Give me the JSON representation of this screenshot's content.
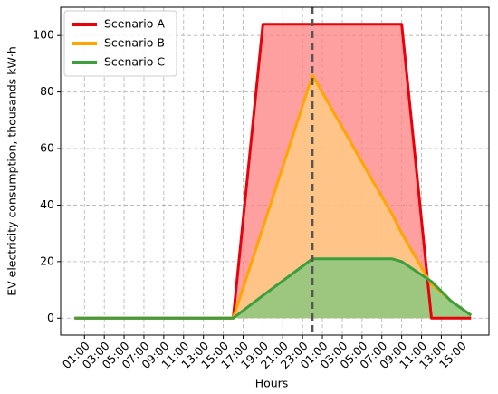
{
  "chart_data": {
    "type": "line",
    "x_label": "Hours",
    "y_label": "EV electricity consumption, thousands kW·h",
    "x": [
      0,
      16,
      19,
      24,
      30,
      32,
      33,
      36,
      38,
      40
    ],
    "series": [
      {
        "name": "Scenario A",
        "color": "#e8000b",
        "fill": "#ff8080",
        "values": [
          0,
          0,
          104,
          104,
          104,
          104,
          104,
          0,
          0,
          0
        ]
      },
      {
        "name": "Scenario B",
        "color": "#ffa500",
        "fill": "#ffd080",
        "values": [
          0,
          0,
          32,
          86,
          49,
          37,
          30,
          12,
          6,
          1
        ]
      },
      {
        "name": "Scenario C",
        "color": "#3c9e3c",
        "fill": "#7cc87c",
        "values": [
          0,
          0,
          8,
          21,
          21,
          21,
          20,
          13,
          6,
          1
        ]
      }
    ],
    "marker_line_x": 24,
    "xlim": [
      -1.4,
      41.8
    ],
    "xticks": [
      {
        "value": 1,
        "label": "01:00"
      },
      {
        "value": 3,
        "label": "03:00"
      },
      {
        "value": 5,
        "label": "05:00"
      },
      {
        "value": 7,
        "label": "07:00"
      },
      {
        "value": 9,
        "label": "09:00"
      },
      {
        "value": 11,
        "label": "11:00"
      },
      {
        "value": 13,
        "label": "13:00"
      },
      {
        "value": 15,
        "label": "15:00"
      },
      {
        "value": 17,
        "label": "17:00"
      },
      {
        "value": 19,
        "label": "19:00"
      },
      {
        "value": 21,
        "label": "21:00"
      },
      {
        "value": 23,
        "label": "23:00"
      },
      {
        "value": 25,
        "label": "01:00"
      },
      {
        "value": 27,
        "label": "03:00"
      },
      {
        "value": 29,
        "label": "05:00"
      },
      {
        "value": 31,
        "label": "07:00"
      },
      {
        "value": 33,
        "label": "09:00"
      },
      {
        "value": 35,
        "label": "11:00"
      },
      {
        "value": 37,
        "label": "13:00"
      },
      {
        "value": 39,
        "label": "15:00"
      }
    ],
    "ylim": [
      -6,
      110
    ],
    "yticks": [
      0,
      20,
      40,
      60,
      80,
      100
    ],
    "grid": true,
    "legend": "upper-left"
  }
}
